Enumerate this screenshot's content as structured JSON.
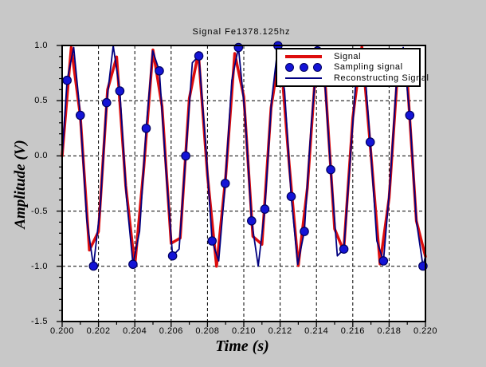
{
  "chart_data": {
    "type": "line",
    "title": "Signal Fe1378.125hz",
    "xlabel": "Time (s)",
    "ylabel": "Amplitude (V)",
    "xlim": [
      0.2,
      0.22
    ],
    "ylim": [
      -1.5,
      1.0
    ],
    "x_tick_labels": [
      "0.200",
      "0.202",
      "0.204",
      "0.206",
      "0.208",
      "0.210",
      "0.212",
      "0.214",
      "0.216",
      "0.218",
      "0.220"
    ],
    "x_tick_values": [
      0.2,
      0.202,
      0.204,
      0.206,
      0.208,
      0.21,
      0.212,
      0.214,
      0.216,
      0.218,
      0.22
    ],
    "y_tick_labels": [
      "1.0",
      "0.5",
      "0.0",
      "-0.5",
      "-1.0",
      "-1.5"
    ],
    "y_tick_values": [
      1.0,
      0.5,
      0.0,
      -0.5,
      -1.0,
      -1.5
    ],
    "x_minor_tick_step": 0.001,
    "y_minor_tick_step": 0.1,
    "grid": {
      "style": "dashed",
      "color": "#000000",
      "vertical_at": [
        0.202,
        0.204,
        0.206,
        0.208,
        0.21,
        0.212,
        0.214,
        0.216,
        0.218
      ],
      "horizontal_at": [
        0.5,
        0.0,
        -0.5,
        -1.0
      ]
    },
    "plot_background": "#ffffff",
    "figure_background": "#c8c8c8",
    "legend_position": "top-right",
    "signal_frequency_hz": 441,
    "sampling_frequency_hz": 1378.125,
    "series": [
      {
        "name": "Signal",
        "type": "line",
        "color": "#dd0d0d",
        "points": [
          [
            0.2,
            0
          ],
          [
            0.2005,
            0.983
          ],
          [
            0.201,
            0.362
          ],
          [
            0.2015,
            -0.853
          ],
          [
            0.202,
            -0.685
          ],
          [
            0.2025,
            0.6
          ],
          [
            0.203,
            0.897
          ],
          [
            0.2035,
            -0.27
          ],
          [
            0.204,
            -0.996
          ],
          [
            0.2045,
            -0.097
          ],
          [
            0.205,
            0.96
          ],
          [
            0.2055,
            0.448
          ],
          [
            0.206,
            -0.792
          ],
          [
            0.2065,
            -0.744
          ],
          [
            0.207,
            0.52
          ],
          [
            0.2075,
            0.936
          ],
          [
            0.208,
            -0.175
          ],
          [
            0.2085,
            -1.0
          ],
          [
            0.209,
            -0.194
          ],
          [
            0.2095,
            0.928
          ],
          [
            0.21,
            0.536
          ],
          [
            0.2105,
            -0.729
          ],
          [
            0.211,
            -0.801
          ],
          [
            0.2115,
            0.434
          ],
          [
            0.212,
            0.966
          ],
          [
            0.2125,
            -0.078
          ],
          [
            0.213,
            -0.994
          ],
          [
            0.2135,
            -0.289
          ],
          [
            0.214,
            0.888
          ],
          [
            0.2145,
            0.615
          ],
          [
            0.215,
            -0.661
          ],
          [
            0.2155,
            -0.861
          ],
          [
            0.216,
            0.345
          ],
          [
            0.2165,
            0.986
          ],
          [
            0.217,
            0.019
          ],
          [
            0.2175,
            -0.979
          ],
          [
            0.218,
            -0.381
          ],
          [
            0.2185,
            0.839
          ],
          [
            0.219,
            0.688
          ],
          [
            0.2195,
            -0.589
          ],
          [
            0.22,
            -0.911
          ]
        ]
      },
      {
        "name": "Sampling signal",
        "type": "scatter",
        "color": "#1414d6",
        "marker": "filled-circle",
        "points": [
          [
            0.200272,
            0.684
          ],
          [
            0.200998,
            0.368
          ],
          [
            0.201723,
            -0.998
          ],
          [
            0.202449,
            0.482
          ],
          [
            0.203175,
            0.588
          ],
          [
            0.2039,
            -0.982
          ],
          [
            0.204626,
            0.249
          ],
          [
            0.205351,
            0.77
          ],
          [
            0.206077,
            -0.905
          ],
          [
            0.206803,
            0
          ],
          [
            0.207528,
            0.905
          ],
          [
            0.208254,
            -0.77
          ],
          [
            0.20898,
            -0.249
          ],
          [
            0.209705,
            0.982
          ],
          [
            0.210431,
            -0.588
          ],
          [
            0.211156,
            -0.482
          ],
          [
            0.211882,
            0.998
          ],
          [
            0.212608,
            -0.368
          ],
          [
            0.213333,
            -0.684
          ],
          [
            0.214059,
            0.951
          ],
          [
            0.214785,
            -0.125
          ],
          [
            0.21551,
            -0.844
          ],
          [
            0.216236,
            0.844
          ],
          [
            0.216962,
            0.125
          ],
          [
            0.217687,
            -0.951
          ],
          [
            0.218413,
            0.684
          ],
          [
            0.219138,
            0.368
          ],
          [
            0.219864,
            -0.998
          ]
        ]
      },
      {
        "name": "Reconstructing Signal",
        "type": "line",
        "color": "#000080",
        "points": [
          [
            0.2,
            0
          ],
          [
            0.200272,
            0.684
          ],
          [
            0.200635,
            0.982
          ],
          [
            0.200998,
            0.368
          ],
          [
            0.201361,
            -0.588
          ],
          [
            0.201723,
            -0.998
          ],
          [
            0.202086,
            -0.482
          ],
          [
            0.202449,
            0.482
          ],
          [
            0.202812,
            0.998
          ],
          [
            0.203175,
            0.588
          ],
          [
            0.203537,
            -0.368
          ],
          [
            0.2039,
            -0.982
          ],
          [
            0.204263,
            -0.684
          ],
          [
            0.204626,
            0.249
          ],
          [
            0.204989,
            0.951
          ],
          [
            0.205351,
            0.77
          ],
          [
            0.205714,
            -0.125
          ],
          [
            0.206077,
            -0.905
          ],
          [
            0.20644,
            -0.844
          ],
          [
            0.206803,
            0
          ],
          [
            0.207165,
            0.844
          ],
          [
            0.207528,
            0.905
          ],
          [
            0.207891,
            0.125
          ],
          [
            0.208254,
            -0.77
          ],
          [
            0.208617,
            -0.951
          ],
          [
            0.20898,
            -0.249
          ],
          [
            0.209342,
            0.684
          ],
          [
            0.209705,
            0.982
          ],
          [
            0.210068,
            0.368
          ],
          [
            0.210431,
            -0.588
          ],
          [
            0.210794,
            -0.998
          ],
          [
            0.211156,
            -0.482
          ],
          [
            0.211519,
            0.482
          ],
          [
            0.211882,
            0.998
          ],
          [
            0.212245,
            0.588
          ],
          [
            0.212608,
            -0.368
          ],
          [
            0.212971,
            -0.982
          ],
          [
            0.213333,
            -0.684
          ],
          [
            0.213696,
            0.249
          ],
          [
            0.214059,
            0.951
          ],
          [
            0.214422,
            0.77
          ],
          [
            0.214785,
            -0.125
          ],
          [
            0.215147,
            -0.905
          ],
          [
            0.21551,
            -0.844
          ],
          [
            0.215873,
            0
          ],
          [
            0.216236,
            0.844
          ],
          [
            0.216599,
            0.905
          ],
          [
            0.216962,
            0.125
          ],
          [
            0.217324,
            -0.77
          ],
          [
            0.217687,
            -0.951
          ],
          [
            0.21805,
            -0.249
          ],
          [
            0.218413,
            0.684
          ],
          [
            0.218776,
            0.982
          ],
          [
            0.219138,
            0.368
          ],
          [
            0.219501,
            -0.588
          ],
          [
            0.219864,
            -0.998
          ],
          [
            0.22,
            -0.911
          ]
        ]
      }
    ]
  }
}
